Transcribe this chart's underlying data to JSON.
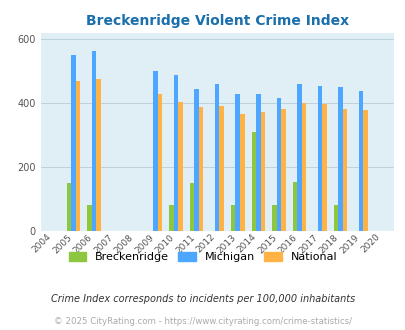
{
  "title": "Breckenridge Violent Crime Index",
  "years": [
    2004,
    2005,
    2006,
    2007,
    2008,
    2009,
    2010,
    2011,
    2012,
    2013,
    2014,
    2015,
    2016,
    2017,
    2018,
    2019,
    2020
  ],
  "breckenridge": [
    0,
    150,
    80,
    0,
    0,
    0,
    80,
    150,
    0,
    80,
    310,
    80,
    155,
    0,
    80,
    0,
    0
  ],
  "michigan": [
    0,
    550,
    565,
    0,
    0,
    500,
    490,
    445,
    460,
    430,
    430,
    415,
    460,
    455,
    450,
    437,
    0
  ],
  "national": [
    0,
    470,
    475,
    0,
    0,
    430,
    405,
    387,
    390,
    365,
    373,
    383,
    400,
    397,
    383,
    379,
    0
  ],
  "breckenridge_color": "#8dc63f",
  "michigan_color": "#4da6ff",
  "national_color": "#ffb347",
  "background_color": "#e0eef5",
  "title_color": "#1a6fad",
  "ylim": [
    0,
    620
  ],
  "yticks": [
    0,
    200,
    400,
    600
  ],
  "ylabel_note": "Crime Index corresponds to incidents per 100,000 inhabitants",
  "footer": "© 2025 CityRating.com - https://www.cityrating.com/crime-statistics/",
  "bar_width": 0.22,
  "grid_color": "#b8cdd8"
}
